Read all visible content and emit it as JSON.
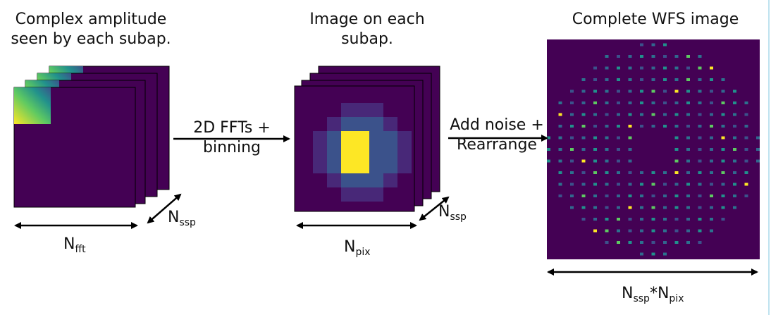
{
  "titles": {
    "amplitude_line1": "Complex amplitude",
    "amplitude_line2": "seen by each subap.",
    "image_line1": "Image on each",
    "image_line2": "subap.",
    "wfs": "Complete WFS image"
  },
  "steps": {
    "fft_line1": "2D FFTs +",
    "fft_line2": "binning",
    "noise_line1": "Add noise +",
    "noise_line2": "Rearrange"
  },
  "symbols": {
    "n_fft_base": "N",
    "n_fft_sub": "fft",
    "n_ssp_base": "N",
    "n_ssp_sub": "ssp",
    "n_pix_base": "N",
    "n_pix_sub": "pix",
    "wfs_base1": "N",
    "wfs_sub1": "ssp",
    "wfs_star": "*",
    "wfs_base2": "N",
    "wfs_sub2": "pix"
  },
  "colors": {
    "dark": "#440154",
    "blue": "#3b528b",
    "mid": "#26828e",
    "green": "#5ec962",
    "yellow": "#fde725",
    "light_blue": "#bfe3ef"
  },
  "icons": [
    "double-arrow-icon",
    "right-arrow-icon"
  ]
}
